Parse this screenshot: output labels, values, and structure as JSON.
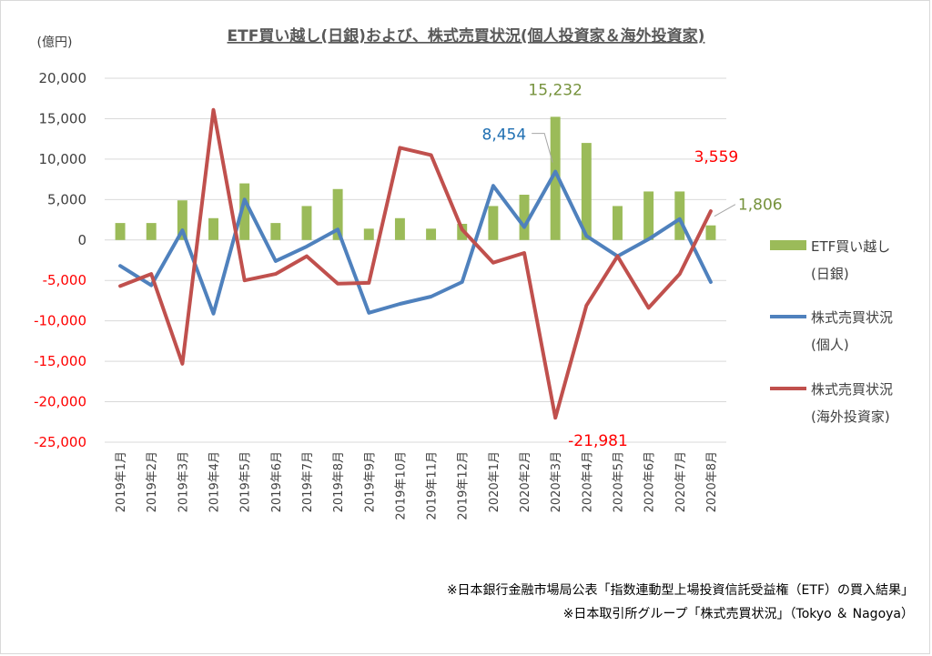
{
  "chart_data": {
    "type": "bar+line",
    "title": "ETF買い越し(日銀)および、株式売買状況(個人投資家＆海外投資家)",
    "unit_label": "(億円)",
    "categories": [
      "2019年1月",
      "2019年2月",
      "2019年3月",
      "2019年4月",
      "2019年5月",
      "2019年6月",
      "2019年7月",
      "2019年8月",
      "2019年9月",
      "2019年10月",
      "2019年11月",
      "2019年12月",
      "2020年1月",
      "2020年2月",
      "2020年3月",
      "2020年4月",
      "2020年5月",
      "2020年6月",
      "2020年7月",
      "2020年8月"
    ],
    "ylim": [
      -25000,
      20000
    ],
    "ytick_step": 5000,
    "yticks": [
      "20,000",
      "15,000",
      "10,000",
      "5,000",
      "0",
      "-5,000",
      "-10,000",
      "-15,000",
      "-20,000",
      "-25,000"
    ],
    "grid": true,
    "legend_position": "right",
    "series": [
      {
        "name_lines": [
          "ETF買い越し",
          "(日銀)"
        ],
        "type": "bar",
        "color": "#9bbb59",
        "values": [
          2100,
          2100,
          4900,
          2700,
          7000,
          2100,
          4200,
          6300,
          1400,
          2700,
          1400,
          2000,
          4200,
          5600,
          15232,
          12000,
          4200,
          6000,
          6000,
          1806
        ]
      },
      {
        "name_lines": [
          "株式売買状況",
          "(個人)"
        ],
        "type": "line",
        "color": "#4f81bd",
        "values": [
          -3200,
          -5600,
          1200,
          -9100,
          5000,
          -2600,
          -800,
          1300,
          -9000,
          -7900,
          -7000,
          -5200,
          6700,
          1600,
          8454,
          500,
          -2000,
          100,
          2600,
          -5200
        ]
      },
      {
        "name_lines": [
          "株式売買状況",
          "(海外投資家)"
        ],
        "type": "line",
        "color": "#c0504d",
        "values": [
          -5700,
          -4200,
          -15300,
          16100,
          -5000,
          -4200,
          -2000,
          -5400,
          -5300,
          11400,
          10500,
          1300,
          -2800,
          -1600,
          -21981,
          -8100,
          -2000,
          -8400,
          -4200,
          3559
        ]
      }
    ],
    "data_labels": [
      {
        "text": "15,232",
        "series": 0,
        "index": 14,
        "color": "#76923c"
      },
      {
        "text": "1,806",
        "series": 0,
        "index": 19,
        "color": "#76923c"
      },
      {
        "text": "8,454",
        "series": 1,
        "index": 14,
        "color": "#1f6fb2"
      },
      {
        "text": "3,559",
        "series": 2,
        "index": 19,
        "color": "#ff0000"
      },
      {
        "text": "-21,981",
        "series": 2,
        "index": 14,
        "color": "#ff0000"
      }
    ],
    "notes": [
      "※日本銀行金融市場局公表「指数連動型上場投資信託受益権（ETF）の買入結果」",
      "※日本取引所グループ「株式売買状況」（Tokyo ＆ Nagoya）"
    ]
  }
}
